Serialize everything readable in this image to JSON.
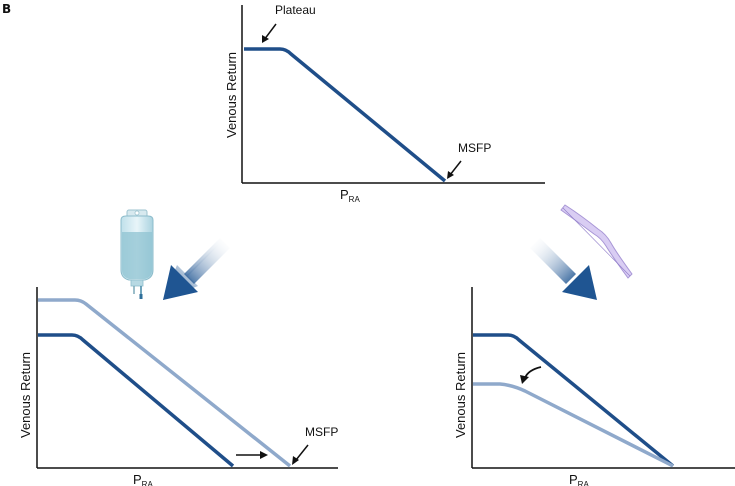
{
  "panel_letter": "B",
  "top_panel": {
    "ylabel": "Venous Return",
    "xlabel_main": "P",
    "xlabel_sub": "RA",
    "annotations": {
      "plateau": "Plateau",
      "msfp": "MSFP"
    }
  },
  "left_panel": {
    "ylabel": "Venous Return",
    "xlabel_main": "P",
    "xlabel_sub": "RA",
    "annotations": {
      "msfp": "MSFP"
    },
    "icon": "iv-fluid-bag-icon"
  },
  "right_panel": {
    "ylabel": "Venous Return",
    "xlabel_main": "P",
    "xlabel_sub": "RA",
    "icon": "constricted-vessel-icon"
  },
  "colors": {
    "dark_curve": "#1f4e89",
    "light_curve": "#8fa9cb",
    "arrow_gradient_start": "#ffffff",
    "arrow_gradient_end": "#1f5592",
    "vessel": "#b8a6e0"
  }
}
